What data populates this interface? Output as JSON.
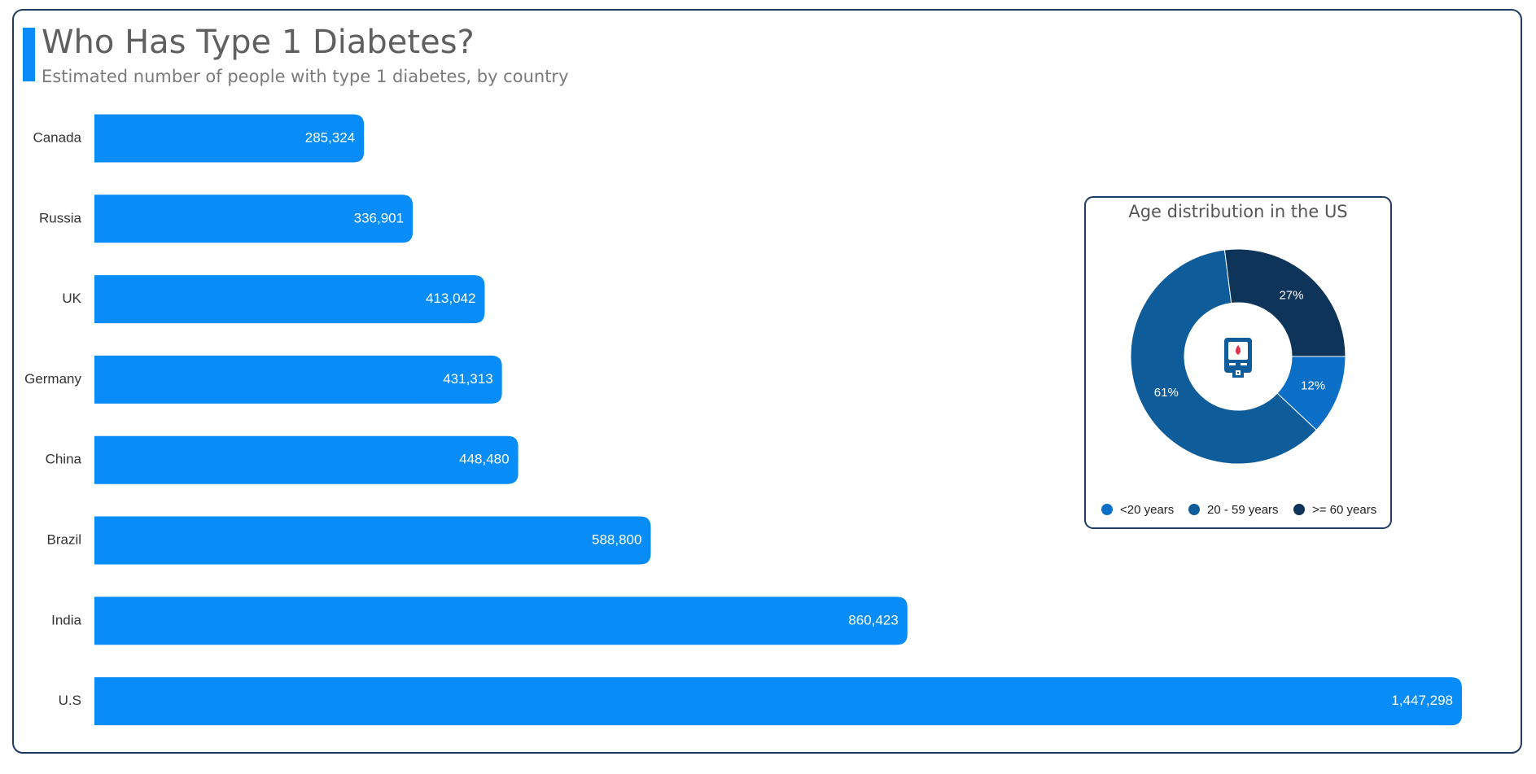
{
  "chart_data": [
    {
      "type": "hbar",
      "title": "Who Has Type 1 Diabetes?",
      "subtitle": "Estimated number of people with type 1 diabetes, by country",
      "categories": [
        "Canada",
        "Russia",
        "UK",
        "Germany",
        "China",
        "Brazil",
        "India",
        "U.S"
      ],
      "values": [
        285324,
        336901,
        413042,
        431313,
        448480,
        588800,
        860423,
        1447298
      ],
      "value_labels": [
        "285,324",
        "336,901",
        "413,042",
        "431,313",
        "448,480",
        "588,800",
        "860,423",
        "1,447,298"
      ],
      "color": "#088cf7"
    },
    {
      "type": "donut",
      "title": "Age distribution in the US",
      "categories": [
        "<20 years",
        "20 - 59 years",
        ">= 60 years"
      ],
      "values": [
        12,
        61,
        27
      ],
      "value_labels": [
        "12%",
        "61%",
        "27%"
      ],
      "colors": [
        "#0b6fc8",
        "#0f5c9a",
        "#0e3459"
      ],
      "legend": "bottom"
    }
  ]
}
